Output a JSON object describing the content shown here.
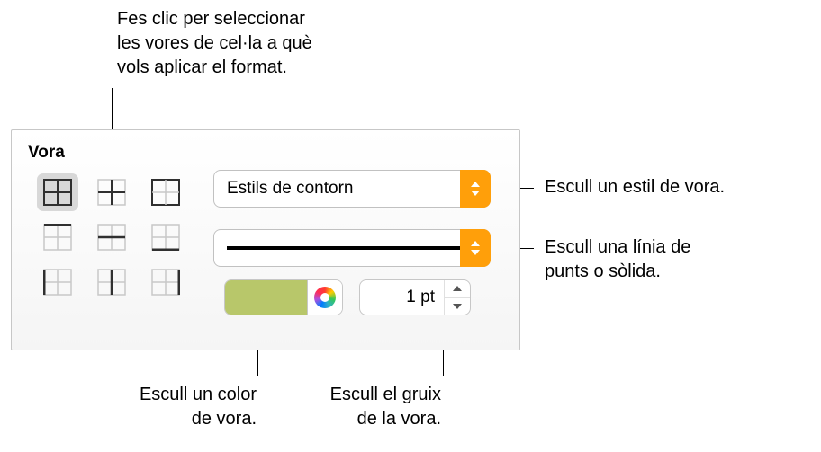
{
  "callouts": {
    "top": "Fes clic per seleccionar\nles vores de cel·la a què\nvols aplicar el format.",
    "style": "Escull un estil de vora.",
    "line": "Escull una línia de\npunts o sòlida.",
    "color": "Escull un color\nde vora.",
    "thickness": "Escull el gruix\nde la vora."
  },
  "panel": {
    "title": "Vora",
    "style_popup": {
      "label": "Estils de contorn",
      "accent": "#ff9f0a"
    },
    "line_popup": {
      "accent": "#ff9f0a",
      "sample_color": "#000000",
      "sample_thickness": 4
    },
    "color_well": {
      "swatch": "#b8c76a"
    },
    "thickness": {
      "value": "1 pt"
    },
    "border_selector": {
      "selected_index": 0,
      "icons": [
        "all",
        "inner",
        "outer",
        "top",
        "hinner",
        "bottom",
        "left",
        "vinner",
        "right"
      ],
      "icon_stroke": "#878787",
      "icon_stroke_bold": "#303030"
    }
  },
  "colors": {
    "panel_border": "#c7c7c7",
    "popup_border": "#c1c1c1",
    "stepper_border": "#c7c7c7",
    "callout_text": "#000000"
  }
}
